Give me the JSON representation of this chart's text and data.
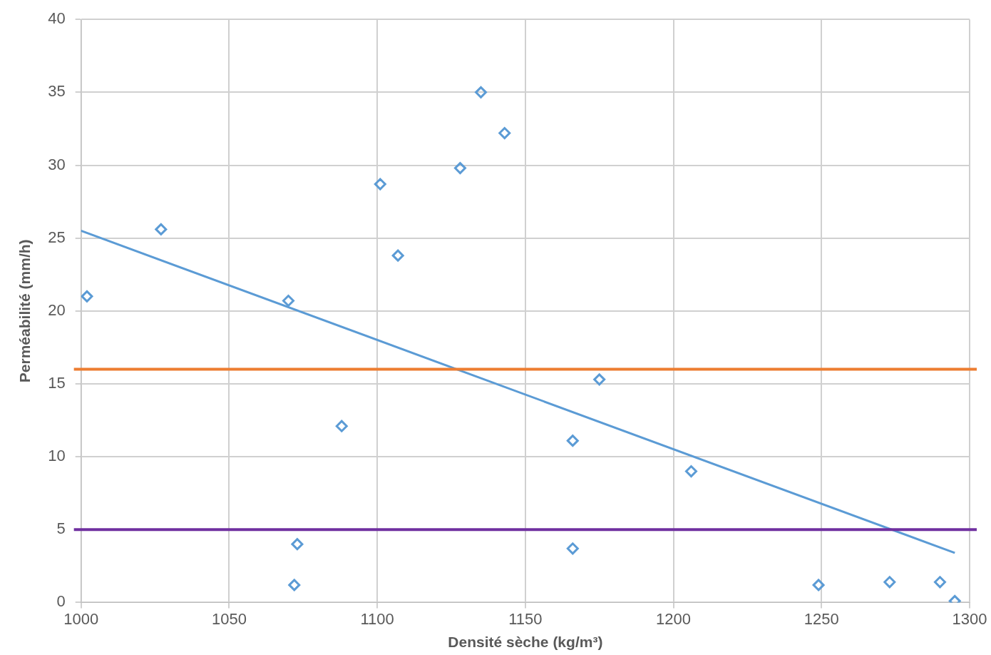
{
  "chart_data": {
    "type": "scatter",
    "xlabel": "Densité sèche (kg/m³)",
    "ylabel": "Perméabilité (mm/h)",
    "xlim": [
      1000,
      1300
    ],
    "xticks": [
      1000,
      1050,
      1100,
      1150,
      1200,
      1250,
      1300
    ],
    "ylim": [
      0,
      40
    ],
    "yticks": [
      0,
      5,
      10,
      15,
      20,
      25,
      30,
      35,
      40
    ],
    "grid": true,
    "legend": false,
    "series": [
      {
        "color": "#5b9bd5",
        "marker": "diamond",
        "x": [
          1002,
          1027,
          1070,
          1072,
          1073,
          1088,
          1101,
          1107,
          1128,
          1135,
          1143,
          1166,
          1166,
          1175,
          1206,
          1249,
          1273,
          1290,
          1295
        ],
        "values": [
          21,
          25.6,
          20.7,
          1.2,
          4,
          12.1,
          28.7,
          23.8,
          29.8,
          35,
          32.2,
          11.1,
          3.7,
          15.3,
          9,
          1.2,
          1.4,
          1.4,
          0.1
        ]
      },
      {
        "type": "line",
        "color": "#5b9bd5",
        "marker": "none",
        "x": [
          1000,
          1295
        ],
        "values": [
          25.5,
          3.4
        ]
      }
    ],
    "ref_lines": [
      {
        "axis": "y",
        "value": 16,
        "color": "#ed7d31"
      },
      {
        "axis": "y",
        "value": 5,
        "color": "#7030a0"
      }
    ]
  }
}
